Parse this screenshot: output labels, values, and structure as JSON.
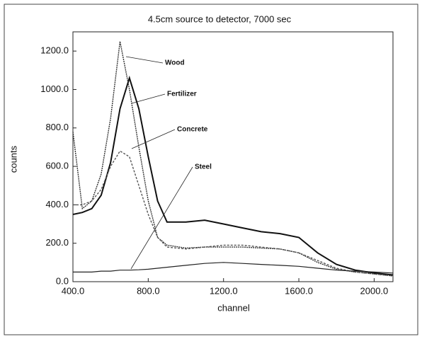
{
  "chart_data": {
    "type": "line",
    "title": "4.5cm source to detector, 7000 sec",
    "x_label": "channel",
    "y_label": "counts",
    "x": [
      400,
      450,
      500,
      550,
      600,
      650,
      700,
      750,
      800,
      850,
      900,
      1000,
      1100,
      1200,
      1300,
      1400,
      1500,
      1600,
      1700,
      1800,
      1900,
      2000,
      2100
    ],
    "series": [
      {
        "name": "Wood",
        "color": "#333333",
        "values": [
          780,
          380,
          420,
          560,
          850,
          1250,
          1000,
          700,
          420,
          230,
          190,
          175,
          180,
          180,
          180,
          175,
          170,
          150,
          100,
          65,
          50,
          40,
          30
        ]
      },
      {
        "name": "Fertilizer",
        "color": "#111111",
        "values": [
          350,
          360,
          380,
          450,
          620,
          900,
          1060,
          900,
          650,
          420,
          310,
          310,
          320,
          300,
          280,
          260,
          250,
          230,
          150,
          90,
          60,
          45,
          35
        ]
      },
      {
        "name": "Concrete",
        "color": "#555555",
        "values": [
          400,
          400,
          420,
          480,
          600,
          680,
          650,
          500,
          350,
          230,
          180,
          170,
          180,
          190,
          190,
          180,
          170,
          150,
          110,
          70,
          50,
          40,
          30
        ]
      },
      {
        "name": "Steel",
        "color": "#222222",
        "values": [
          50,
          50,
          50,
          55,
          55,
          60,
          60,
          62,
          65,
          70,
          75,
          85,
          95,
          100,
          95,
          90,
          85,
          80,
          70,
          60,
          55,
          50,
          45
        ]
      }
    ],
    "xlim": [
      400,
      2100
    ],
    "xticks": [
      {
        "value": 400,
        "label": "400.0"
      },
      {
        "value": 800,
        "label": "800.0"
      },
      {
        "value": 1200,
        "label": "1200.0"
      },
      {
        "value": 1600,
        "label": "1600.0"
      },
      {
        "value": 2000,
        "label": "2000.0"
      }
    ],
    "ylim": [
      0,
      1300
    ],
    "yticks": [
      {
        "value": 0,
        "label": "0.0"
      },
      {
        "value": 200,
        "label": "200.0"
      },
      {
        "value": 400,
        "label": "400.0"
      },
      {
        "value": 600,
        "label": "600.0"
      },
      {
        "value": 800,
        "label": "800.0"
      },
      {
        "value": 1000,
        "label": "1000.0"
      },
      {
        "value": 1200,
        "label": "1200.0"
      }
    ]
  }
}
